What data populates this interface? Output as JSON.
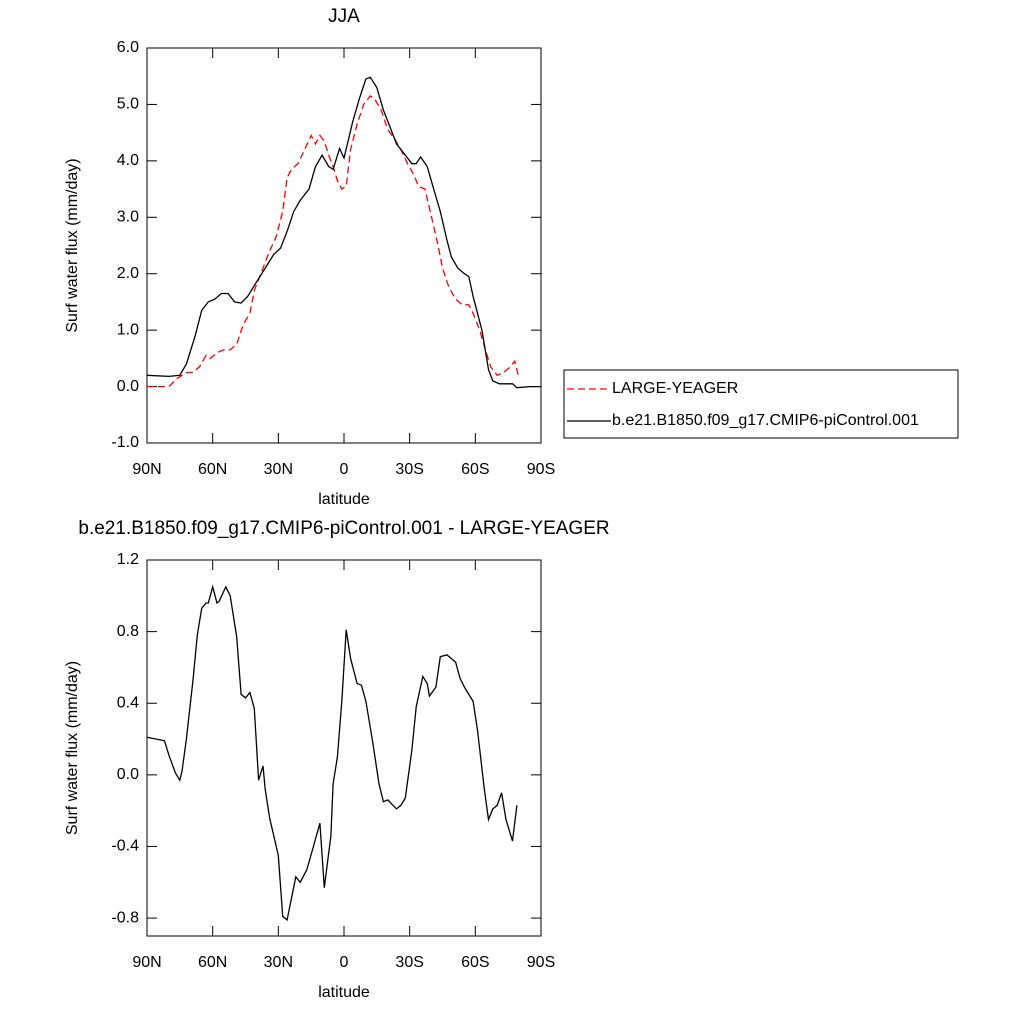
{
  "chart_data": [
    {
      "type": "line",
      "title": "JJA",
      "x_label": "latitude",
      "y_label": "Surf water flux (mm/day)",
      "xlim": [
        90,
        -90
      ],
      "xticks": [
        {
          "value": 90,
          "label": "90N"
        },
        {
          "value": 60,
          "label": "60N"
        },
        {
          "value": 30,
          "label": "30N"
        },
        0,
        {
          "value": -30,
          "label": "30S"
        },
        {
          "value": -60,
          "label": "60S"
        },
        {
          "value": -90,
          "label": "90S"
        }
      ],
      "ylim": [
        -1,
        6
      ],
      "yticks": [
        {
          "value": -1,
          "label": "-1.0"
        },
        {
          "value": 0,
          "label": "0.0"
        },
        {
          "value": 1,
          "label": "1.0"
        },
        {
          "value": 2,
          "label": "2.0"
        },
        {
          "value": 3,
          "label": "3.0"
        },
        {
          "value": 4,
          "label": "4.0"
        },
        {
          "value": 5,
          "label": "5.0"
        },
        {
          "value": 6,
          "label": "6.0"
        }
      ],
      "legend": "outside-right",
      "series": [
        {
          "name": "LARGE-YEAGER",
          "color": "#ff0000",
          "line_style": "dashed",
          "x": [
            90,
            80,
            76,
            72,
            69,
            66,
            63,
            61,
            58,
            55,
            52,
            49,
            46,
            43,
            41,
            38,
            34,
            31,
            28,
            26,
            24,
            21,
            18,
            15,
            13,
            11,
            9,
            7,
            5,
            3,
            1,
            -1,
            -3,
            -6,
            -9,
            -12,
            -14,
            -17,
            -20,
            -23,
            -26,
            -29,
            -32,
            -34,
            -37,
            -40,
            -43,
            -45,
            -48,
            -51,
            -54,
            -57,
            -59,
            -62,
            -65,
            -67,
            -70,
            -73,
            -76,
            -78,
            -80
          ],
          "values": [
            0,
            0,
            0.15,
            0.25,
            0.25,
            0.35,
            0.55,
            0.5,
            0.6,
            0.65,
            0.65,
            0.75,
            1.1,
            1.3,
            1.7,
            2.0,
            2.4,
            2.65,
            3.1,
            3.7,
            3.85,
            3.95,
            4.2,
            4.45,
            4.3,
            4.45,
            4.35,
            4.1,
            3.9,
            3.65,
            3.5,
            3.55,
            4.2,
            4.65,
            5.0,
            5.15,
            5.1,
            4.9,
            4.55,
            4.4,
            4.2,
            3.95,
            3.75,
            3.55,
            3.5,
            3.0,
            2.5,
            2.1,
            1.75,
            1.55,
            1.45,
            1.45,
            1.3,
            1.0,
            0.6,
            0.35,
            0.2,
            0.25,
            0.35,
            0.45,
            0.15
          ]
        },
        {
          "name": "b.e21.B1850.f09_g17.CMIP6-piControl.001",
          "color": "#000000",
          "line_style": "solid",
          "x": [
            90,
            80,
            75,
            72,
            68,
            65,
            62,
            59,
            56,
            53,
            50,
            47,
            44,
            40,
            36,
            32,
            29,
            26,
            23,
            20,
            16,
            13,
            10,
            7,
            5,
            2,
            0,
            -4,
            -7,
            -10,
            -12,
            -15,
            -18,
            -21,
            -24,
            -28,
            -31,
            -33,
            -35,
            -38,
            -41,
            -44,
            -47,
            -49,
            -52,
            -55,
            -57,
            -59,
            -63,
            -66,
            -68,
            -71,
            -77,
            -79,
            -85,
            -90
          ],
          "values": [
            0.2,
            0.18,
            0.2,
            0.4,
            0.9,
            1.35,
            1.5,
            1.55,
            1.65,
            1.65,
            1.5,
            1.48,
            1.6,
            1.85,
            2.1,
            2.35,
            2.45,
            2.75,
            3.1,
            3.3,
            3.5,
            3.9,
            4.1,
            3.9,
            3.85,
            4.22,
            4.05,
            4.7,
            5.1,
            5.45,
            5.48,
            5.3,
            4.9,
            4.6,
            4.3,
            4.1,
            3.95,
            3.95,
            4.07,
            3.9,
            3.5,
            3.1,
            2.6,
            2.3,
            2.1,
            2.0,
            1.95,
            1.6,
            1.0,
            0.3,
            0.1,
            0.05,
            0.05,
            -0.02,
            0.0,
            0.0
          ]
        }
      ]
    },
    {
      "type": "line",
      "title": "b.e21.B1850.f09_g17.CMIP6-piControl.001 - LARGE-YEAGER",
      "x_label": "latitude",
      "y_label": "Surf water flux (mm/day)",
      "xlim": [
        90,
        -90
      ],
      "xticks": [
        {
          "value": 90,
          "label": "90N"
        },
        {
          "value": 60,
          "label": "60N"
        },
        {
          "value": 30,
          "label": "30N"
        },
        0,
        {
          "value": -30,
          "label": "30S"
        },
        {
          "value": -60,
          "label": "60S"
        },
        {
          "value": -90,
          "label": "90S"
        }
      ],
      "ylim": [
        -0.9,
        1.2
      ],
      "yticks": [
        -0.8,
        -0.4,
        {
          "value": 0,
          "label": "0.0"
        },
        0.4,
        0.8,
        1.2
      ],
      "color": "#000000",
      "x": [
        90,
        82,
        80,
        77,
        75,
        74,
        72,
        69,
        67,
        65,
        63,
        62,
        60,
        58,
        57,
        54,
        52,
        49,
        47,
        45,
        43,
        41,
        39,
        37,
        36,
        34,
        30,
        28,
        26,
        22,
        20,
        17,
        14,
        11,
        9,
        6,
        5,
        3,
        1,
        -1,
        -3,
        -6,
        -8,
        -10,
        -13,
        -16,
        -18,
        -20,
        -24,
        -26,
        -28,
        -31,
        -33,
        -36,
        -38,
        -39,
        -42,
        -44,
        -47,
        -51,
        -53,
        -55,
        -59,
        -61,
        -64,
        -66,
        -68,
        -70,
        -72,
        -74,
        -77,
        -79
      ],
      "values": [
        0.21,
        0.19,
        0.11,
        0.01,
        -0.03,
        0.02,
        0.2,
        0.53,
        0.78,
        0.93,
        0.96,
        0.96,
        1.05,
        0.96,
        0.97,
        1.05,
        1.0,
        0.77,
        0.45,
        0.43,
        0.46,
        0.37,
        -0.03,
        0.05,
        -0.08,
        -0.24,
        -0.45,
        -0.79,
        -0.81,
        -0.57,
        -0.6,
        -0.53,
        -0.4,
        -0.27,
        -0.63,
        -0.34,
        -0.05,
        0.1,
        0.41,
        0.81,
        0.65,
        0.51,
        0.5,
        0.41,
        0.19,
        -0.05,
        -0.15,
        -0.14,
        -0.19,
        -0.17,
        -0.13,
        0.14,
        0.38,
        0.55,
        0.51,
        0.44,
        0.49,
        0.66,
        0.67,
        0.63,
        0.54,
        0.49,
        0.41,
        0.25,
        -0.07,
        -0.25,
        -0.19,
        -0.17,
        -0.1,
        -0.25,
        -0.37,
        -0.17
      ]
    }
  ]
}
